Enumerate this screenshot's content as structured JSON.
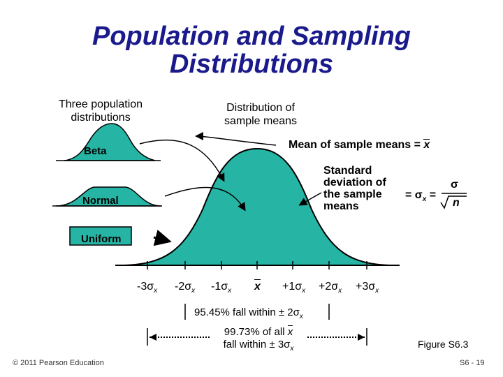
{
  "title_line1": "Population and Sampling",
  "title_line2": "Distributions",
  "three_pop_line1": "Three population",
  "three_pop_line2": "distributions",
  "dist_sample_line1": "Distribution of",
  "dist_sample_line2": "sample means",
  "mean_label": "Mean of sample means = ",
  "sd_line1": "Standard",
  "sd_line2": "deviation of",
  "sd_line3": "the sample",
  "sd_line4": "means",
  "sd_eq_prefix": "= σ",
  "sd_eq_sub": "x",
  "sd_eq_mid": " = ",
  "sigma": "σ",
  "n": "n",
  "beta": "Beta",
  "normal": "Normal",
  "uniform": "Uniform",
  "ticks": [
    "-3σ",
    "-2σ",
    "-1σ",
    "+1σ",
    "+2σ",
    "+3σ"
  ],
  "tick_sub": "x",
  "xbar": "x",
  "band95": "95.45% fall within ± 2σ",
  "band99_line1": "99.73% of all ",
  "band99_xbar": "x",
  "band99_line2": "fall within ± 3σ",
  "figure": "Figure S6.3",
  "copyright": "© 2011 Pearson Education",
  "page": "S6 - 19",
  "colors": {
    "title": "#1a1a8c",
    "fill": "#26b5a4"
  }
}
